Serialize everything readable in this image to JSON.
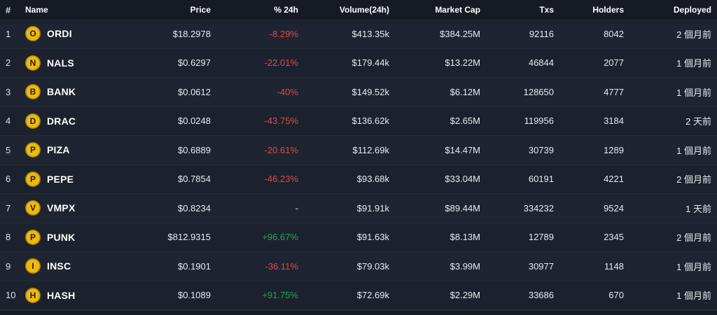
{
  "colors": {
    "coin_yellow": "#f0b90b",
    "up_green": "#23a15d",
    "down_red": "#e04a4a",
    "header_bg": "#151a23",
    "row_bg": "#1e2430"
  },
  "table": {
    "columns": {
      "rank": "#",
      "name": "Name",
      "price": "Price",
      "change": "% 24h",
      "volume": "Volume(24h)",
      "market_cap": "Market Cap",
      "txs": "Txs",
      "holders": "Holders",
      "deployed": "Deployed"
    },
    "rows": [
      {
        "rank": "1",
        "icon_letter": "O",
        "symbol": "ORDI",
        "price": "$18.2978",
        "change": "-8.29%",
        "change_dir": "down",
        "volume": "$413.35k",
        "market_cap": "$384.25M",
        "txs": "92116",
        "holders": "8042",
        "deployed": "2 個月前"
      },
      {
        "rank": "2",
        "icon_letter": "N",
        "symbol": "NALS",
        "price": "$0.6297",
        "change": "-22.01%",
        "change_dir": "down",
        "volume": "$179.44k",
        "market_cap": "$13.22M",
        "txs": "46844",
        "holders": "2077",
        "deployed": "1 個月前"
      },
      {
        "rank": "3",
        "icon_letter": "B",
        "symbol": "BANK",
        "price": "$0.0612",
        "change": "-40%",
        "change_dir": "down",
        "volume": "$149.52k",
        "market_cap": "$6.12M",
        "txs": "128650",
        "holders": "4777",
        "deployed": "1 個月前"
      },
      {
        "rank": "4",
        "icon_letter": "D",
        "symbol": "DRAC",
        "price": "$0.0248",
        "change": "-43.75%",
        "change_dir": "down",
        "volume": "$136.62k",
        "market_cap": "$2.65M",
        "txs": "119956",
        "holders": "3184",
        "deployed": "2 天前"
      },
      {
        "rank": "5",
        "icon_letter": "P",
        "symbol": "PIZA",
        "price": "$0.6889",
        "change": "-20.61%",
        "change_dir": "down",
        "volume": "$112.69k",
        "market_cap": "$14.47M",
        "txs": "30739",
        "holders": "1289",
        "deployed": "1 個月前"
      },
      {
        "rank": "6",
        "icon_letter": "P",
        "symbol": "PEPE",
        "price": "$0.7854",
        "change": "-46.23%",
        "change_dir": "down",
        "volume": "$93.68k",
        "market_cap": "$33.04M",
        "txs": "60191",
        "holders": "4221",
        "deployed": "2 個月前"
      },
      {
        "rank": "7",
        "icon_letter": "V",
        "symbol": "VMPX",
        "price": "$0.8234",
        "change": "-",
        "change_dir": "none",
        "volume": "$91.91k",
        "market_cap": "$89.44M",
        "txs": "334232",
        "holders": "9524",
        "deployed": "1 天前"
      },
      {
        "rank": "8",
        "icon_letter": "P",
        "symbol": "PUNK",
        "price": "$812.9315",
        "change": "+96.67%",
        "change_dir": "up",
        "volume": "$91.63k",
        "market_cap": "$8.13M",
        "txs": "12789",
        "holders": "2345",
        "deployed": "2 個月前"
      },
      {
        "rank": "9",
        "icon_letter": "I",
        "symbol": "INSC",
        "price": "$0.1901",
        "change": "-36.11%",
        "change_dir": "down",
        "volume": "$79.03k",
        "market_cap": "$3.99M",
        "txs": "30977",
        "holders": "1148",
        "deployed": "1 個月前"
      },
      {
        "rank": "10",
        "icon_letter": "H",
        "symbol": "HASH",
        "price": "$0.1089",
        "change": "+91.75%",
        "change_dir": "up",
        "volume": "$72.69k",
        "market_cap": "$2.29M",
        "txs": "33686",
        "holders": "670",
        "deployed": "1 個月前"
      }
    ]
  }
}
